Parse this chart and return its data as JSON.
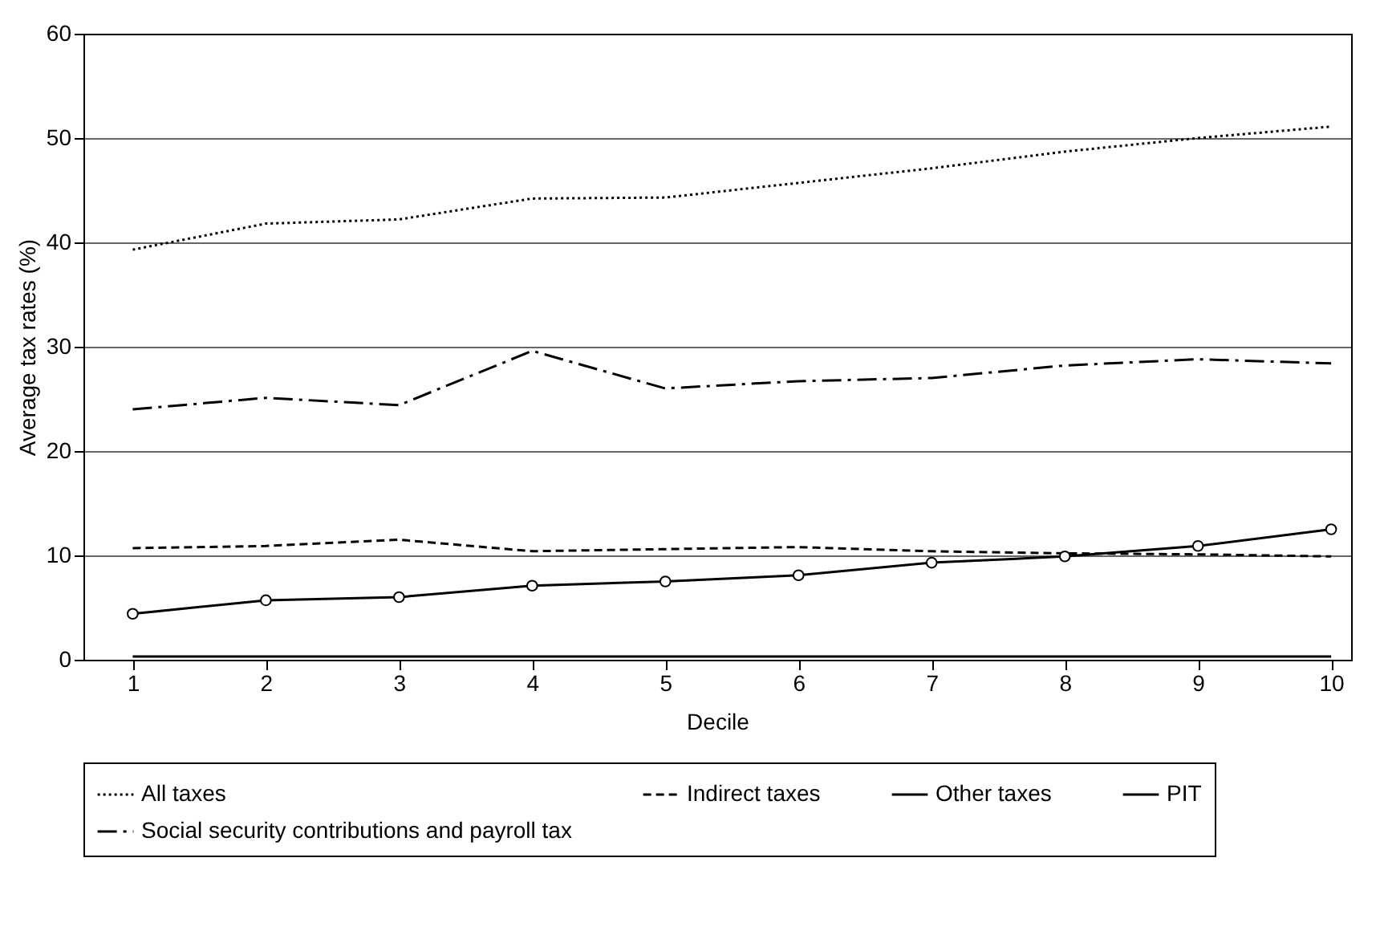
{
  "chart_data": {
    "type": "line",
    "xlabel": "Decile",
    "ylabel": "Average tax rates (%)",
    "x": [
      1,
      2,
      3,
      4,
      5,
      6,
      7,
      8,
      9,
      10
    ],
    "series": [
      {
        "name": "All taxes",
        "color": "#000000",
        "line_style": "dotted",
        "values": [
          39.3,
          41.8,
          42.2,
          44.2,
          44.3,
          45.7,
          47.1,
          48.7,
          50.0,
          51.1
        ]
      },
      {
        "name": "Indirect taxes",
        "color": "#000000",
        "line_style": "dashed",
        "values": [
          10.7,
          10.9,
          11.5,
          10.4,
          10.6,
          10.8,
          10.4,
          10.2,
          10.1,
          9.9
        ]
      },
      {
        "name": "Other taxes",
        "color": "#000000",
        "line_style": "solid",
        "values": [
          0.3,
          0.3,
          0.3,
          0.3,
          0.3,
          0.3,
          0.3,
          0.3,
          0.3,
          0.3
        ]
      },
      {
        "name": "PIT",
        "color": "#000000",
        "line_style": "solid",
        "marker": "circle",
        "values": [
          4.4,
          5.7,
          6.0,
          7.1,
          7.5,
          8.1,
          9.3,
          9.9,
          10.9,
          12.5
        ]
      },
      {
        "name": "Social security contributions and payroll tax",
        "color": "#000000",
        "line_style": "dashdot",
        "values": [
          24.0,
          25.1,
          24.4,
          29.6,
          26.0,
          26.7,
          27.0,
          28.2,
          28.8,
          28.4
        ]
      }
    ],
    "xlim": [
      0.63,
      10.15
    ],
    "xticks": [
      1,
      2,
      3,
      4,
      5,
      6,
      7,
      8,
      9,
      10
    ],
    "ylim": [
      0,
      60
    ],
    "yticks": [
      0,
      10,
      20,
      30,
      40,
      50,
      60
    ],
    "grid": "y",
    "legend": "bottom"
  }
}
